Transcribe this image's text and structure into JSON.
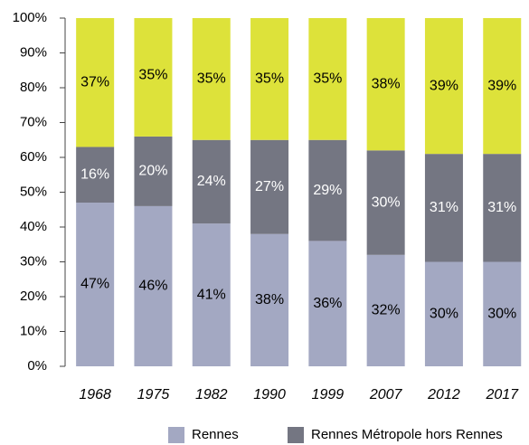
{
  "chart_data": {
    "type": "stacked_bar",
    "categories": [
      "1968",
      "1975",
      "1982",
      "1990",
      "1999",
      "2007",
      "2012",
      "2017"
    ],
    "series": [
      {
        "name": "Rennes",
        "color": "#a3a8c2",
        "label_color": "#000000",
        "values": [
          47,
          46,
          41,
          38,
          36,
          32,
          30,
          30
        ],
        "value_labels": [
          "47%",
          "46%",
          "41%",
          "38%",
          "36%",
          "32%",
          "30%",
          "30%"
        ]
      },
      {
        "name": "Rennes Métropole hors Rennes",
        "color": "#747682",
        "label_color": "#ffffff",
        "values": [
          16,
          20,
          24,
          27,
          29,
          30,
          31,
          31
        ],
        "value_labels": [
          "16%",
          "20%",
          "24%",
          "27%",
          "29%",
          "30%",
          "31%",
          "31%"
        ]
      },
      {
        "color": "#dde23a",
        "label_color": "#000000",
        "values": [
          37,
          35,
          35,
          35,
          35,
          38,
          39,
          39
        ],
        "value_labels": [
          "37%",
          "35%",
          "35%",
          "35%",
          "35%",
          "38%",
          "39%",
          "39%"
        ]
      }
    ],
    "ylim": [
      0,
      100
    ],
    "yticks": [
      {
        "value": 0,
        "label": "0%"
      },
      {
        "value": 10,
        "label": "10%"
      },
      {
        "value": 20,
        "label": "20%"
      },
      {
        "value": 30,
        "label": "30%"
      },
      {
        "value": 40,
        "label": "40%"
      },
      {
        "value": 50,
        "label": "50%"
      },
      {
        "value": 60,
        "label": "60%"
      },
      {
        "value": 70,
        "label": "70%"
      },
      {
        "value": 80,
        "label": "80%"
      },
      {
        "value": 90,
        "label": "90%"
      },
      {
        "value": 100,
        "label": "100%"
      }
    ],
    "grid": false,
    "legend": "bottom"
  }
}
